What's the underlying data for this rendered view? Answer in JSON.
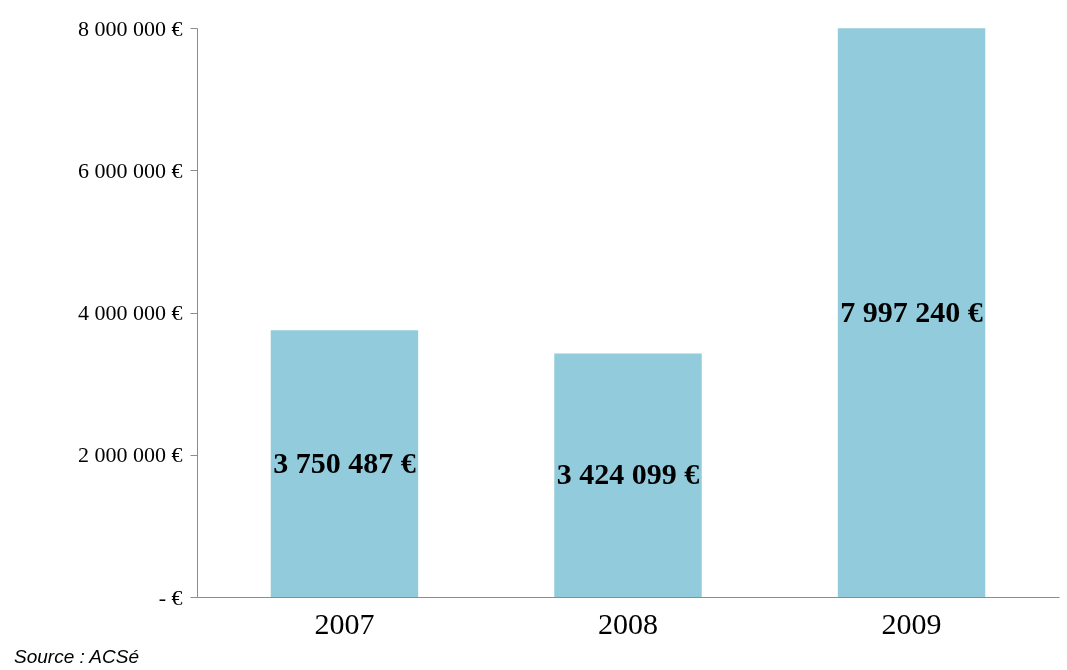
{
  "chart_data": {
    "type": "bar",
    "categories": [
      "2007",
      "2008",
      "2009"
    ],
    "values": [
      3750487,
      3424099,
      7997240
    ],
    "value_labels": [
      "3 750 487 €",
      "3 424 099 €",
      "7 997 240 €"
    ],
    "color": "#92cbdc",
    "ylim": [
      0,
      8000000
    ],
    "yticks": [
      {
        "value": 0,
        "label": "-   €"
      },
      {
        "value": 2000000,
        "label": "2 000 000 €"
      },
      {
        "value": 4000000,
        "label": "4 000 000 €"
      },
      {
        "value": 6000000,
        "label": "6 000 000 €"
      },
      {
        "value": 8000000,
        "label": "8 000 000 €"
      }
    ],
    "grid": false,
    "annotations": [
      "Source : ACSé"
    ]
  }
}
